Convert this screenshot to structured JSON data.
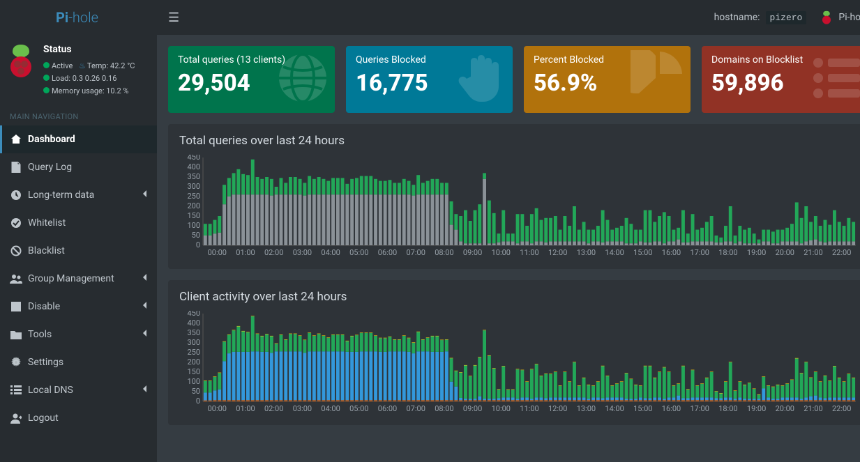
{
  "brand": {
    "pi": "Pi",
    "hole": "-hole"
  },
  "status": {
    "title": "Status",
    "active": "Active",
    "temp_label": "Temp:",
    "temp_value": "42.2 °C",
    "load_label": "Load:",
    "load_values": "0.3  0.26  0.16",
    "mem_label": "Memory usage:",
    "mem_value": "10.2 %"
  },
  "nav": {
    "header": "MAIN NAVIGATION",
    "items": [
      {
        "label": "Dashboard",
        "icon": "home",
        "active": true
      },
      {
        "label": "Query Log",
        "icon": "file"
      },
      {
        "label": "Long-term data",
        "icon": "clock",
        "expandable": true
      },
      {
        "label": "Whitelist",
        "icon": "check-circle"
      },
      {
        "label": "Blacklist",
        "icon": "ban"
      },
      {
        "label": "Group Management",
        "icon": "users",
        "expandable": true
      },
      {
        "label": "Disable",
        "icon": "stop",
        "expandable": true
      },
      {
        "label": "Tools",
        "icon": "folder",
        "expandable": true
      },
      {
        "label": "Settings",
        "icon": "cog"
      },
      {
        "label": "Local DNS",
        "icon": "list",
        "expandable": true
      },
      {
        "label": "Logout",
        "icon": "user"
      }
    ]
  },
  "topbar": {
    "hostname_label": "hostname:",
    "hostname": "pizero",
    "app": "Pi-hole"
  },
  "stats": [
    {
      "label": "Total queries (13 clients)",
      "value": "29,504",
      "bg": "#00744c",
      "icon": "globe"
    },
    {
      "label": "Queries Blocked",
      "value": "16,775",
      "bg": "#007997",
      "icon": "hand"
    },
    {
      "label": "Percent Blocked",
      "value": "56.9%",
      "bg": "#b1720c",
      "icon": "pie"
    },
    {
      "label": "Domains on Blocklist",
      "value": "59,896",
      "bg": "#913225",
      "icon": "list"
    }
  ],
  "chart1": {
    "title": "Total queries over last 24 hours",
    "ylim": [
      0,
      450
    ],
    "ytick_step": 50,
    "x_labels": [
      "00:00",
      "01:00",
      "02:00",
      "03:00",
      "04:00",
      "05:00",
      "06:00",
      "07:00",
      "08:00",
      "09:00",
      "10:00",
      "11:00",
      "12:00",
      "13:00",
      "14:00",
      "15:00",
      "16:00",
      "17:00",
      "18:00",
      "19:00",
      "20:00",
      "21:00",
      "22:00"
    ],
    "colors": {
      "blocked": "#8a9197",
      "permitted": "#22a758"
    },
    "data_points_per_label": 6,
    "blocked": [
      50,
      50,
      60,
      65,
      210,
      250,
      260,
      260,
      260,
      260,
      260,
      260,
      260,
      260,
      255,
      260,
      260,
      260,
      260,
      260,
      260,
      255,
      260,
      260,
      260,
      260,
      260,
      260,
      260,
      260,
      260,
      260,
      260,
      260,
      260,
      260,
      260,
      260,
      260,
      260,
      260,
      260,
      260,
      260,
      255,
      260,
      260,
      260,
      260,
      260,
      260,
      260,
      105,
      80,
      20,
      10,
      10,
      10,
      10,
      340,
      10,
      10,
      15,
      20,
      20,
      20,
      10,
      20,
      20,
      10,
      20,
      20,
      15,
      20,
      20,
      20,
      20,
      20,
      20,
      20,
      20,
      10,
      20,
      20,
      15,
      20,
      20,
      20,
      20,
      10,
      10,
      10,
      20,
      15,
      15,
      20,
      20,
      10,
      20,
      20,
      30,
      15,
      15,
      20,
      20,
      20,
      20,
      20,
      15,
      15,
      20,
      20,
      10,
      20,
      10,
      10,
      10,
      10,
      20,
      20,
      10,
      10,
      20,
      20,
      20,
      20,
      10,
      20,
      25,
      30,
      20,
      15,
      20,
      20,
      20,
      20,
      20,
      20
    ],
    "permitted": [
      60,
      60,
      70,
      85,
      100,
      95,
      110,
      130,
      105,
      100,
      180,
      90,
      80,
      90,
      85,
      40,
      85,
      60,
      90,
      90,
      80,
      65,
      95,
      80,
      90,
      80,
      70,
      85,
      85,
      85,
      55,
      80,
      85,
      95,
      95,
      95,
      80,
      70,
      70,
      75,
      60,
      60,
      80,
      70,
      55,
      100,
      60,
      70,
      80,
      80,
      60,
      60,
      120,
      80,
      130,
      170,
      115,
      170,
      200,
      30,
      220,
      155,
      45,
      160,
      40,
      40,
      150,
      140,
      80,
      150,
      170,
      110,
      125,
      120,
      130,
      60,
      130,
      80,
      180,
      60,
      100,
      70,
      60,
      80,
      165,
      110,
      60,
      70,
      80,
      130,
      100,
      70,
      60,
      165,
      165,
      100,
      130,
      160,
      130,
      60,
      60,
      165,
      45,
      140,
      60,
      70,
      100,
      130,
      35,
      25,
      80,
      180,
      40,
      80,
      70,
      80,
      50,
      20,
      60,
      60,
      60,
      70,
      60,
      70,
      90,
      200,
      130,
      180,
      95,
      120,
      80,
      115,
      85,
      160,
      100,
      80,
      120,
      100
    ]
  },
  "chart2": {
    "title": "Client activity over last 24 hours",
    "ylim": [
      0,
      450
    ],
    "ytick_step": 50,
    "x_labels": [
      "00:00",
      "01:00",
      "02:00",
      "03:00",
      "04:00",
      "05:00",
      "06:00",
      "07:00",
      "08:00",
      "09:00",
      "10:00",
      "11:00",
      "12:00",
      "13:00",
      "14:00",
      "15:00",
      "16:00",
      "17:00",
      "18:00",
      "19:00",
      "20:00",
      "21:00",
      "22:00"
    ],
    "colors": {
      "c1": "#3398db",
      "c2": "#22a758",
      "c3": "#d35400",
      "c4": "#f1c40f"
    },
    "data_points_per_label": 6,
    "c1": [
      40,
      40,
      50,
      55,
      200,
      240,
      248,
      248,
      248,
      248,
      250,
      250,
      248,
      248,
      243,
      250,
      250,
      250,
      250,
      250,
      250,
      243,
      250,
      250,
      250,
      250,
      250,
      250,
      250,
      250,
      248,
      248,
      248,
      250,
      250,
      250,
      250,
      248,
      248,
      250,
      250,
      250,
      250,
      248,
      240,
      250,
      250,
      250,
      248,
      248,
      248,
      250,
      95,
      70,
      12,
      8,
      8,
      8,
      20,
      8,
      8,
      8,
      10,
      14,
      14,
      14,
      8,
      14,
      14,
      8,
      14,
      14,
      10,
      14,
      14,
      14,
      14,
      14,
      14,
      14,
      14,
      8,
      14,
      14,
      10,
      14,
      14,
      14,
      14,
      8,
      8,
      8,
      14,
      10,
      10,
      14,
      14,
      8,
      14,
      14,
      24,
      10,
      10,
      14,
      14,
      14,
      14,
      14,
      10,
      10,
      14,
      14,
      8,
      14,
      8,
      8,
      8,
      8,
      60,
      14,
      8,
      8,
      14,
      14,
      14,
      14,
      8,
      14,
      20,
      24,
      14,
      10,
      14,
      14,
      14,
      14,
      14,
      14
    ],
    "c2": [
      60,
      60,
      70,
      85,
      100,
      95,
      110,
      130,
      105,
      100,
      180,
      90,
      80,
      90,
      85,
      40,
      85,
      60,
      90,
      90,
      80,
      65,
      95,
      80,
      90,
      80,
      70,
      85,
      85,
      85,
      55,
      80,
      85,
      95,
      95,
      95,
      80,
      70,
      70,
      75,
      60,
      60,
      80,
      70,
      55,
      100,
      60,
      70,
      80,
      80,
      60,
      60,
      120,
      80,
      130,
      170,
      115,
      170,
      200,
      350,
      220,
      155,
      45,
      160,
      40,
      40,
      150,
      140,
      80,
      150,
      170,
      110,
      125,
      120,
      130,
      60,
      130,
      80,
      180,
      60,
      100,
      70,
      60,
      80,
      165,
      110,
      60,
      70,
      80,
      130,
      100,
      70,
      60,
      165,
      165,
      100,
      130,
      160,
      130,
      60,
      60,
      165,
      45,
      140,
      60,
      70,
      100,
      130,
      35,
      25,
      80,
      180,
      40,
      80,
      70,
      80,
      50,
      20,
      60,
      60,
      60,
      70,
      60,
      70,
      90,
      200,
      130,
      180,
      95,
      120,
      80,
      115,
      85,
      160,
      100,
      80,
      120,
      100
    ],
    "c3": [
      5,
      5,
      6,
      6,
      6,
      6,
      6,
      6,
      6,
      6,
      6,
      6,
      6,
      6,
      6,
      6,
      6,
      6,
      6,
      6,
      6,
      6,
      6,
      6,
      6,
      6,
      6,
      6,
      6,
      6,
      6,
      6,
      6,
      6,
      6,
      6,
      6,
      6,
      6,
      6,
      6,
      6,
      6,
      6,
      6,
      6,
      6,
      6,
      6,
      6,
      6,
      6,
      6,
      6,
      6,
      6,
      6,
      6,
      6,
      6,
      6,
      6,
      6,
      6,
      6,
      6,
      6,
      6,
      6,
      6,
      6,
      6,
      6,
      6,
      6,
      6,
      6,
      6,
      6,
      6,
      6,
      6,
      6,
      6,
      6,
      6,
      6,
      6,
      6,
      6,
      6,
      6,
      6,
      6,
      6,
      6,
      6,
      6,
      6,
      6,
      6,
      6,
      6,
      6,
      6,
      6,
      6,
      6,
      6,
      6,
      6,
      6,
      6,
      6,
      6,
      6,
      6,
      6,
      6,
      6,
      6,
      6,
      6,
      6,
      6,
      6,
      6,
      6,
      6,
      6,
      6,
      6,
      6,
      6,
      6,
      6,
      6,
      6
    ],
    "c4": [
      2,
      2,
      2,
      2,
      2,
      2,
      2,
      2,
      2,
      2,
      2,
      2,
      2,
      2,
      2,
      2,
      2,
      2,
      2,
      2,
      2,
      2,
      2,
      2,
      2,
      2,
      2,
      2,
      2,
      2,
      2,
      2,
      2,
      2,
      2,
      2,
      2,
      2,
      2,
      2,
      2,
      2,
      2,
      2,
      2,
      2,
      2,
      2,
      2,
      2,
      2,
      2,
      2,
      2,
      2,
      2,
      2,
      2,
      2,
      2,
      2,
      2,
      2,
      2,
      2,
      2,
      2,
      2,
      2,
      2,
      2,
      2,
      2,
      2,
      2,
      2,
      2,
      2,
      2,
      2,
      2,
      2,
      2,
      2,
      2,
      2,
      2,
      2,
      2,
      2,
      2,
      2,
      2,
      2,
      2,
      2,
      2,
      2,
      2,
      2,
      2,
      2,
      2,
      2,
      2,
      2,
      2,
      2,
      2,
      2,
      2,
      2,
      2,
      2,
      2,
      2,
      2,
      2,
      2,
      2,
      2,
      2,
      2,
      2,
      2,
      2,
      2,
      2,
      2,
      2,
      2,
      2,
      2,
      2,
      2,
      2,
      2,
      2
    ]
  },
  "logo_colors": {
    "top": "#6abf4b",
    "bottom": "#c8102e"
  }
}
